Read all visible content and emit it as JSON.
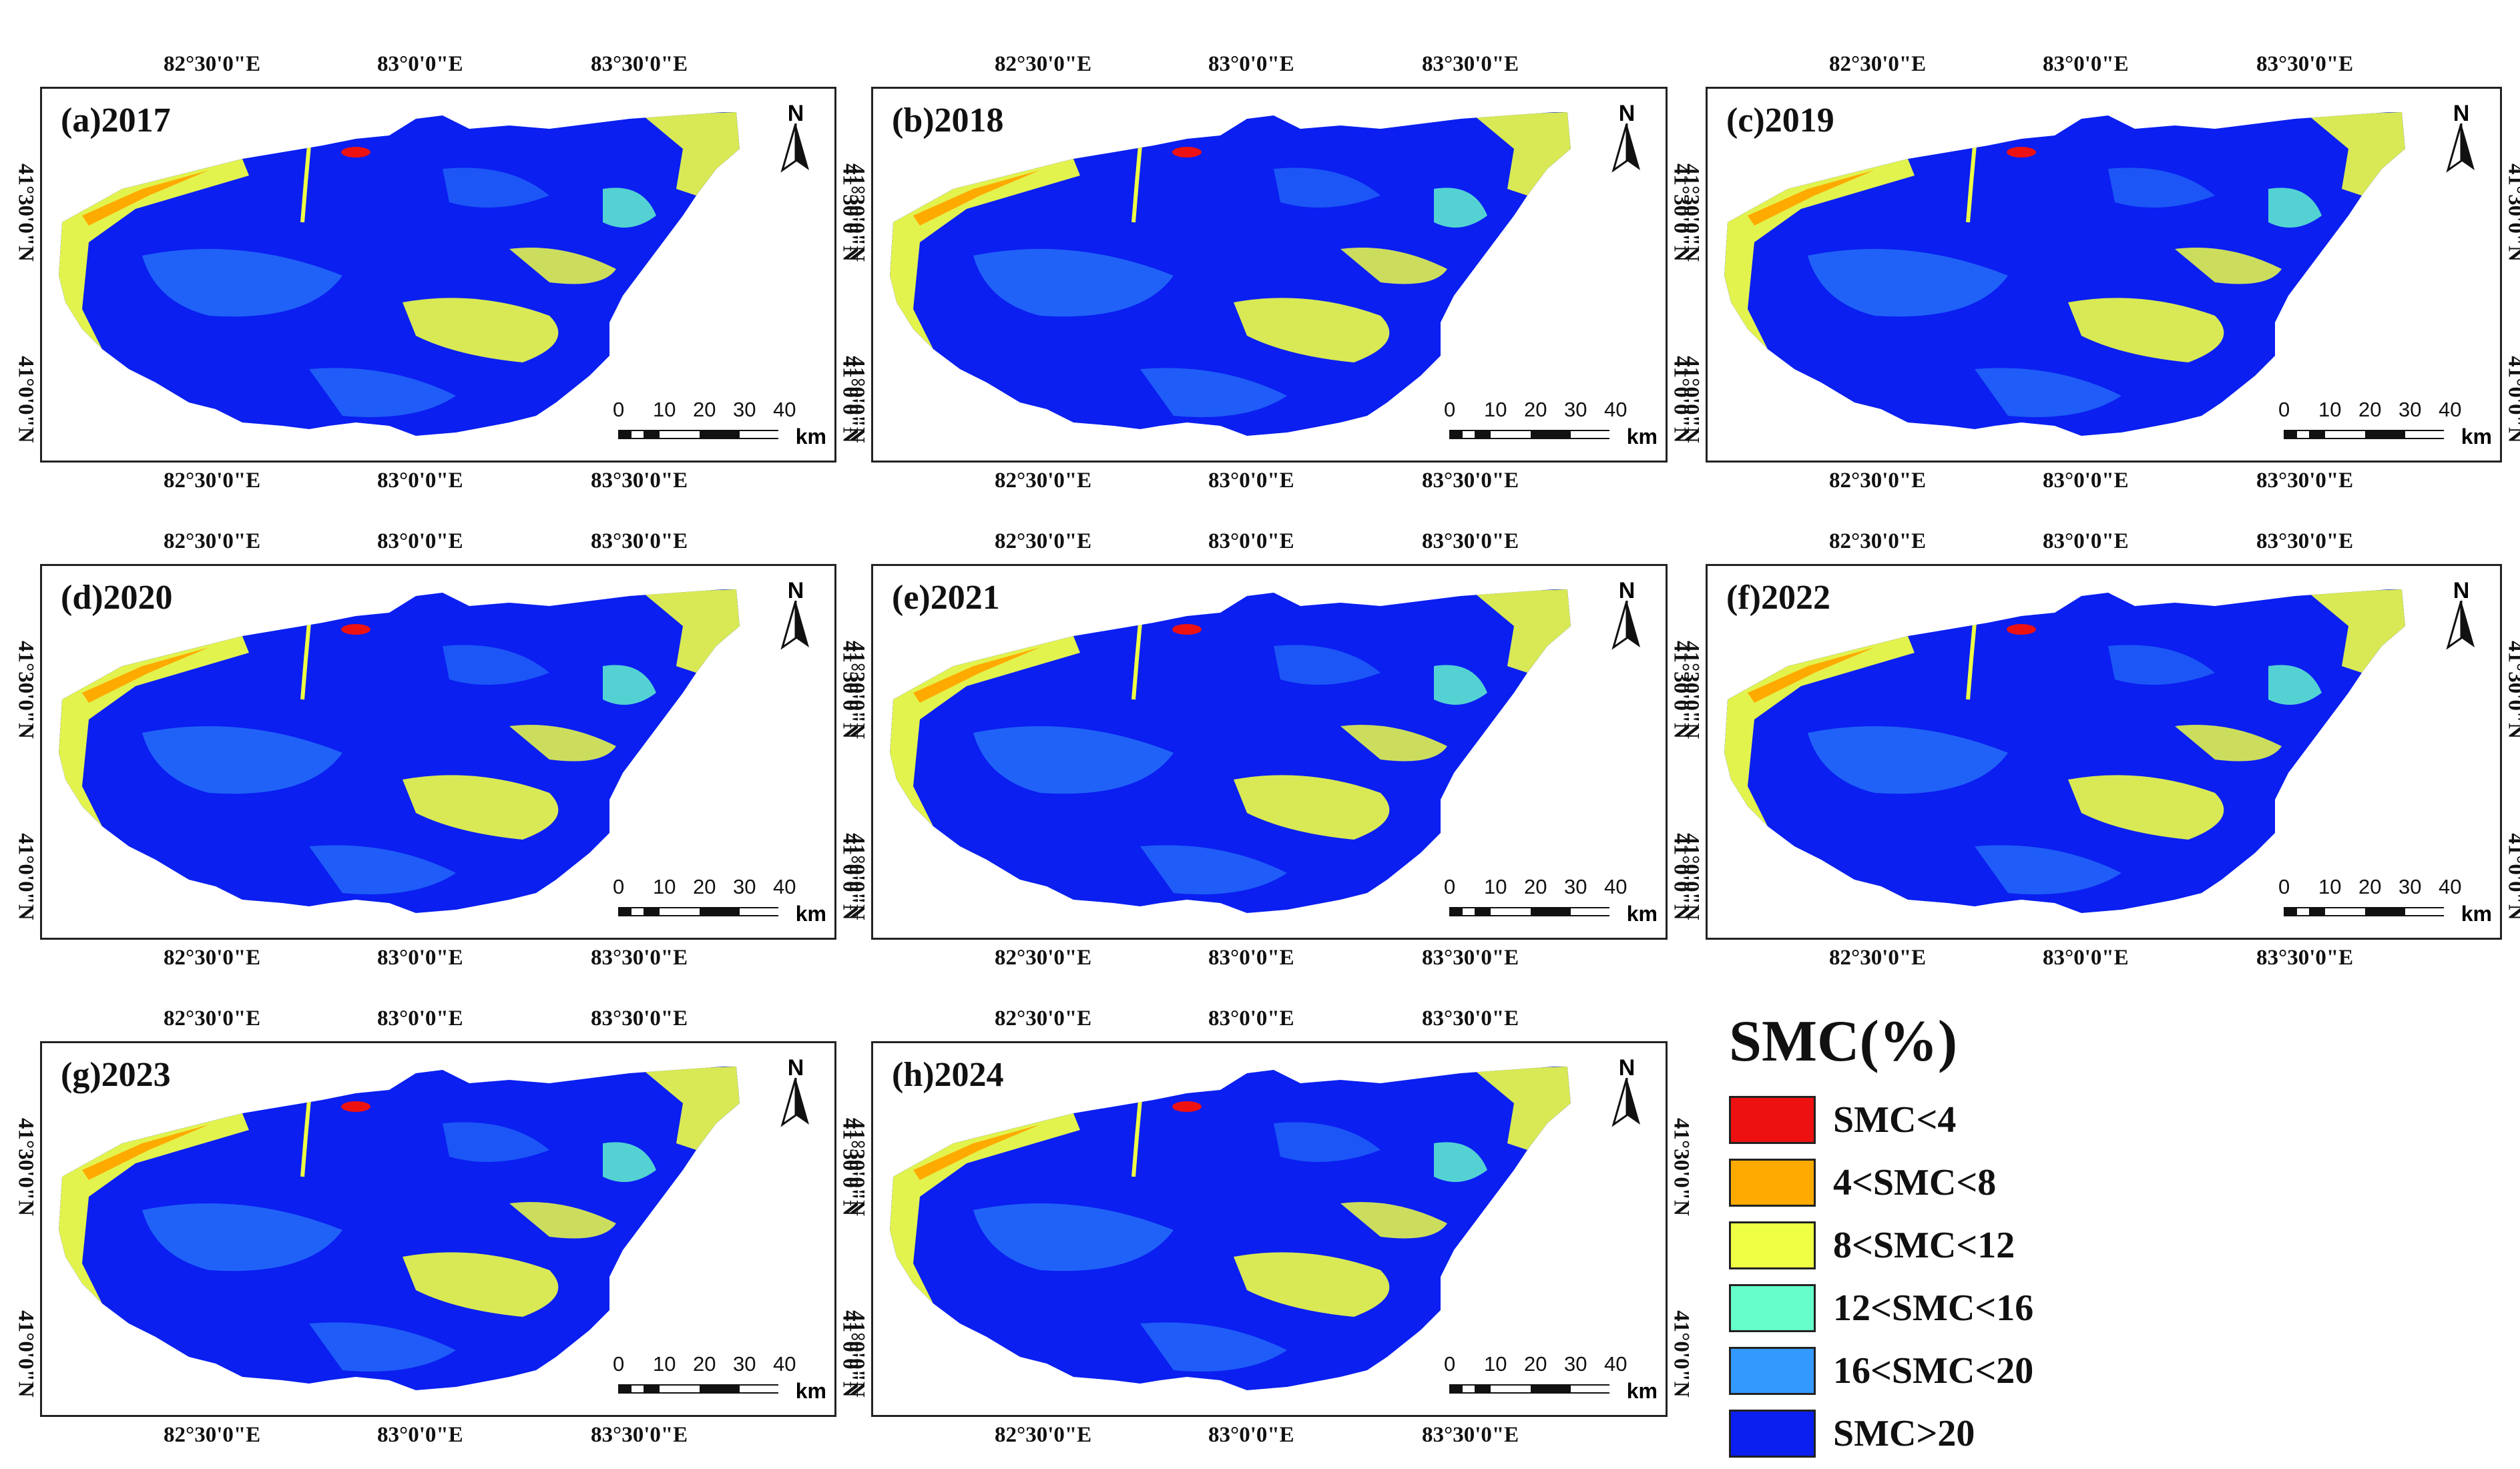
{
  "top_ticks": [
    "82°30'0\"E",
    "83°0'0\"E",
    "83°30'0\"E"
  ],
  "side_ticks": [
    "41°30'0\"N",
    "41°0'0\"N"
  ],
  "panels": [
    {
      "title": "(a)2017"
    },
    {
      "title": "(b)2018"
    },
    {
      "title": "(c)2019"
    },
    {
      "title": "(d)2020"
    },
    {
      "title": "(e)2021"
    },
    {
      "title": "(f)2022"
    },
    {
      "title": "(g)2023"
    },
    {
      "title": "(h)2024"
    }
  ],
  "north_label": "N",
  "scale_bar": {
    "labels": [
      "0",
      "10",
      "20",
      "30",
      "40"
    ],
    "unit": "km"
  },
  "legend": {
    "title": "SMC(%)",
    "classes": [
      {
        "label": "SMC<4",
        "color": "#ee1111"
      },
      {
        "label": "4<SMC<8",
        "color": "#ffaa00"
      },
      {
        "label": "8<SMC<12",
        "color": "#eeff44"
      },
      {
        "label": "12<SMC<16",
        "color": "#66ffcc"
      },
      {
        "label": "16<SMC<20",
        "color": "#3399ff"
      },
      {
        "label": "SMC>20",
        "color": "#0a1ff0"
      }
    ]
  }
}
